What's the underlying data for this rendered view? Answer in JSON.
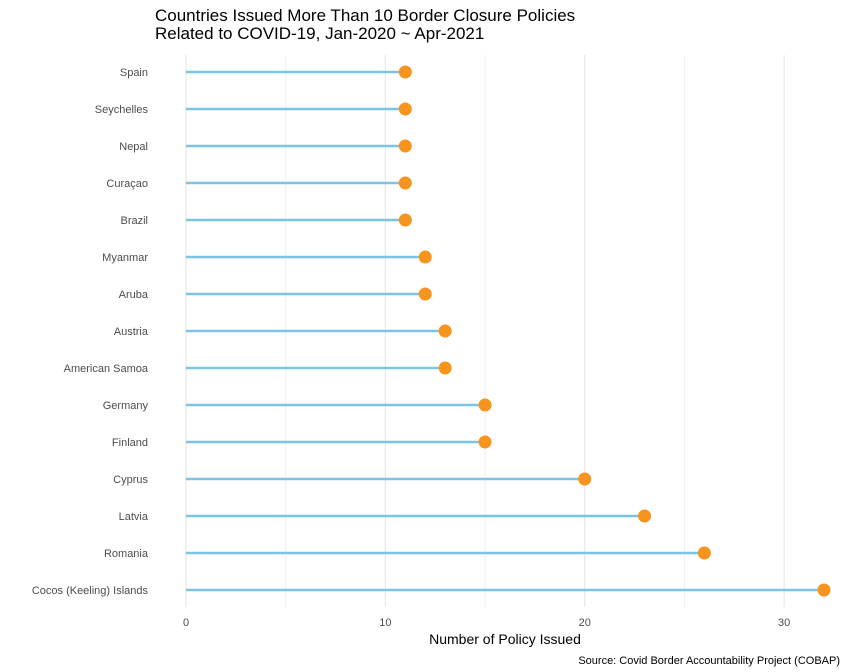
{
  "chart_data": {
    "type": "lollipop",
    "title_lines": [
      "Countries Issued More Than 10 Border Closure Policies",
      "Related to COVID-19, Jan-2020 ~ Apr-2021"
    ],
    "xlabel": "Number of Policy Issued",
    "ylabel": "",
    "caption": "Source: Covid Border Accountability Project (COBAP)",
    "xlim": [
      0,
      32
    ],
    "xticks": [
      0,
      10,
      20,
      30
    ],
    "grid": "vertical",
    "colors": {
      "stem": "#7ac4e6",
      "point": "#f7941d",
      "grid_major": "#e3e3e3",
      "grid_minor": "#f0f0f0"
    },
    "categories": [
      "Spain",
      "Seychelles",
      "Nepal",
      "Curaçao",
      "Brazil",
      "Myanmar",
      "Aruba",
      "Austria",
      "American Samoa",
      "Germany",
      "Finland",
      "Cyprus",
      "Latvia",
      "Romania",
      "Cocos (Keeling) Islands"
    ],
    "values": [
      11,
      11,
      11,
      11,
      11,
      12,
      12,
      13,
      13,
      15,
      15,
      20,
      23,
      26,
      32
    ]
  }
}
